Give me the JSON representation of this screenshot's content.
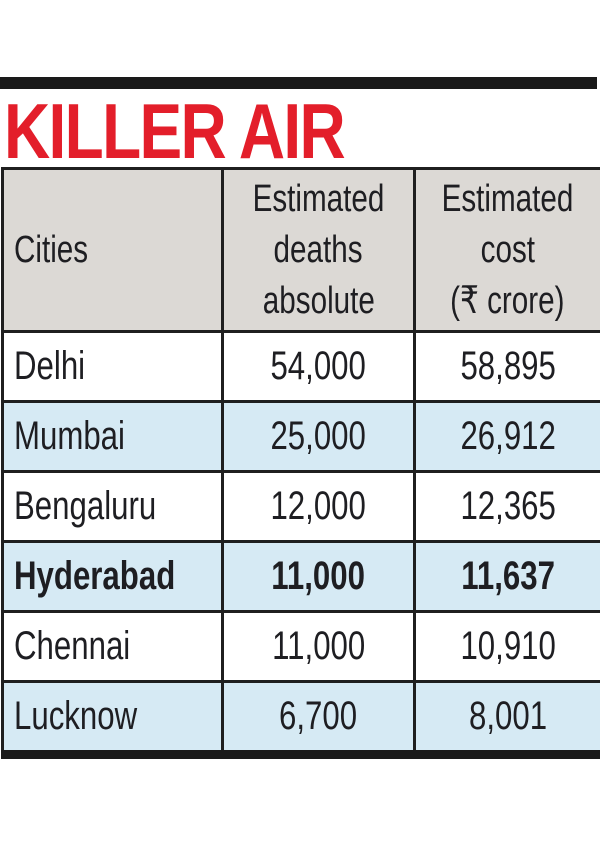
{
  "title": "KILLER AIR",
  "colors": {
    "title": "#e31e2a",
    "header_bg": "#dcd9d5",
    "row_highlight": "#d6eaf4"
  },
  "chart_data": {
    "type": "table",
    "title": "KILLER AIR",
    "columns": [
      "Cities",
      "Estimated deaths absolute",
      "Estimated cost (₹ crore)"
    ],
    "header_lines": [
      [
        "Cities"
      ],
      [
        "Estimated",
        "deaths",
        "absolute"
      ],
      [
        "Estimated",
        "cost",
        "(₹ crore)"
      ]
    ],
    "rows": [
      {
        "city": "Delhi",
        "deaths": "54,000",
        "cost": "58,895"
      },
      {
        "city": "Mumbai",
        "deaths": "25,000",
        "cost": "26,912"
      },
      {
        "city": "Bengaluru",
        "deaths": "12,000",
        "cost": "12,365"
      },
      {
        "city": "Hyderabad",
        "deaths": "11,000",
        "cost": "11,637"
      },
      {
        "city": "Chennai",
        "deaths": "11,000",
        "cost": "10,910"
      },
      {
        "city": "Lucknow",
        "deaths": "6,700",
        "cost": "8,001"
      }
    ],
    "highlighted_row": "Hyderabad"
  }
}
